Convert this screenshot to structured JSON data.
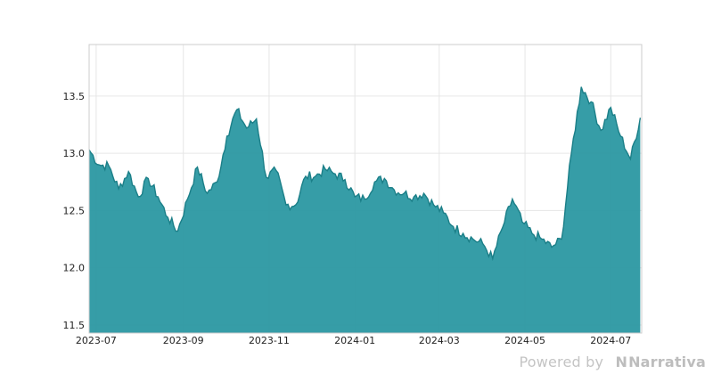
{
  "chart_data": {
    "type": "area",
    "title": "",
    "xlabel": "",
    "ylabel": "",
    "x_start": "2023-06-26",
    "x_end": "2024-07-23",
    "ylim": [
      11.43,
      13.95
    ],
    "y_ticks": [
      11.5,
      12.0,
      12.5,
      13.0,
      13.5
    ],
    "y_tick_labels": [
      "11.5",
      "12.0",
      "12.5",
      "13.0",
      "13.5"
    ],
    "x_ticks": [
      "2023-07-01",
      "2023-09-01",
      "2023-11-01",
      "2024-01-01",
      "2024-03-01",
      "2024-05-01",
      "2024-07-01"
    ],
    "x_tick_labels": [
      "2023-07",
      "2023-09",
      "2023-11",
      "2024-01",
      "2024-03",
      "2024-05",
      "2024-07"
    ],
    "grid": true,
    "legend": "none",
    "color": "#2b98a2",
    "line_color": "#1b7f88",
    "series": [
      {
        "x": [
          "2023-06-26",
          "2023-07-03",
          "2023-07-10",
          "2023-07-17",
          "2023-07-24",
          "2023-07-31",
          "2023-08-07",
          "2023-08-14",
          "2023-08-21",
          "2023-08-28",
          "2023-09-04",
          "2023-09-11",
          "2023-09-18",
          "2023-09-25",
          "2023-10-02",
          "2023-10-09",
          "2023-10-16",
          "2023-10-23",
          "2023-10-30",
          "2023-11-06",
          "2023-11-13",
          "2023-11-20",
          "2023-11-27",
          "2023-12-04",
          "2023-12-11",
          "2023-12-18",
          "2023-12-25",
          "2024-01-01",
          "2024-01-08",
          "2024-01-15",
          "2024-01-22",
          "2024-01-29",
          "2024-02-05",
          "2024-02-12",
          "2024-02-19",
          "2024-02-26",
          "2024-03-04",
          "2024-03-11",
          "2024-03-18",
          "2024-03-25",
          "2024-04-01",
          "2024-04-08",
          "2024-04-15",
          "2024-04-22",
          "2024-04-29",
          "2024-05-06",
          "2024-05-13",
          "2024-05-20",
          "2024-05-27",
          "2024-06-03",
          "2024-06-10",
          "2024-06-17",
          "2024-06-24",
          "2024-07-01",
          "2024-07-08",
          "2024-07-15",
          "2024-07-22"
        ],
        "y": [
          13.03,
          12.9,
          12.89,
          12.69,
          12.84,
          12.62,
          12.78,
          12.62,
          12.44,
          12.32,
          12.6,
          12.88,
          12.65,
          12.75,
          13.15,
          13.38,
          13.22,
          13.3,
          12.79,
          12.85,
          12.55,
          12.55,
          12.8,
          12.8,
          12.86,
          12.82,
          12.77,
          12.62,
          12.6,
          12.75,
          12.78,
          12.68,
          12.65,
          12.62,
          12.65,
          12.55,
          12.48,
          12.36,
          12.3,
          12.25,
          12.21,
          12.08,
          12.35,
          12.6,
          12.4,
          12.3,
          12.25,
          12.18,
          12.25,
          13.0,
          13.58,
          13.45,
          13.2,
          13.4,
          13.15,
          12.95,
          13.31
        ]
      }
    ]
  },
  "watermark": {
    "prefix": "Powered by",
    "brand": "Narrativa"
  }
}
